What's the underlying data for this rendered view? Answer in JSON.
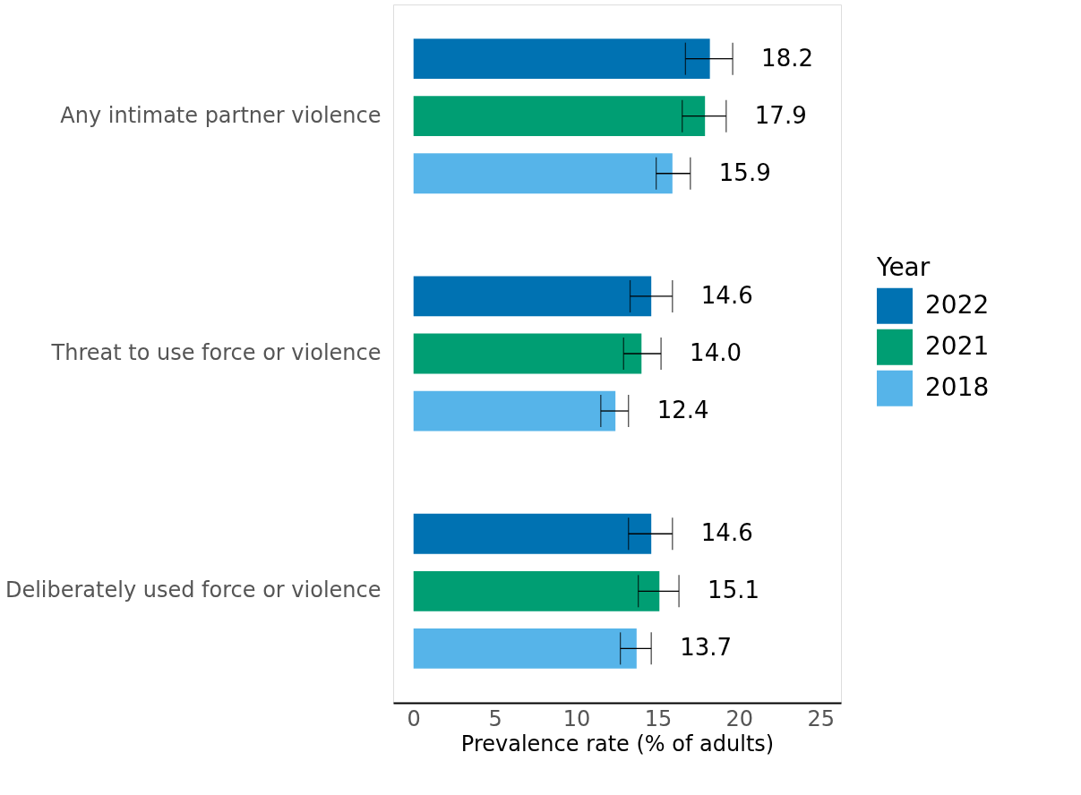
{
  "chart_data": {
    "type": "bar",
    "orientation": "horizontal",
    "xlabel": "Prevalence rate (% of adults)",
    "legend_title": "Year",
    "legend": "right",
    "grid": false,
    "categories": [
      "Any intimate partner violence",
      "Threat to use force or violence",
      "Deliberately used force or violence"
    ],
    "xlim": [
      -1.25,
      26.25
    ],
    "xticks": [
      0,
      5,
      10,
      15,
      20,
      25
    ],
    "series": [
      {
        "name": "2022",
        "color": "#0072b2",
        "values": [
          18.2,
          14.6,
          14.6
        ],
        "value_labels": [
          "18.2",
          "14.6",
          "14.6"
        ],
        "errors": [
          [
            16.7,
            19.6
          ],
          [
            13.3,
            15.9
          ],
          [
            13.2,
            15.9
          ]
        ]
      },
      {
        "name": "2021",
        "color": "#009e73",
        "values": [
          17.9,
          14.0,
          15.1
        ],
        "value_labels": [
          "17.9",
          "14.0",
          "15.1"
        ],
        "errors": [
          [
            16.5,
            19.2
          ],
          [
            12.9,
            15.2
          ],
          [
            13.8,
            16.3
          ]
        ]
      },
      {
        "name": "2018",
        "color": "#56b4e9",
        "values": [
          15.9,
          12.4,
          13.7
        ],
        "value_labels": [
          "15.9",
          "12.4",
          "13.7"
        ],
        "errors": [
          [
            14.9,
            17.0
          ],
          [
            11.5,
            13.2
          ],
          [
            12.7,
            14.6
          ]
        ]
      }
    ]
  }
}
